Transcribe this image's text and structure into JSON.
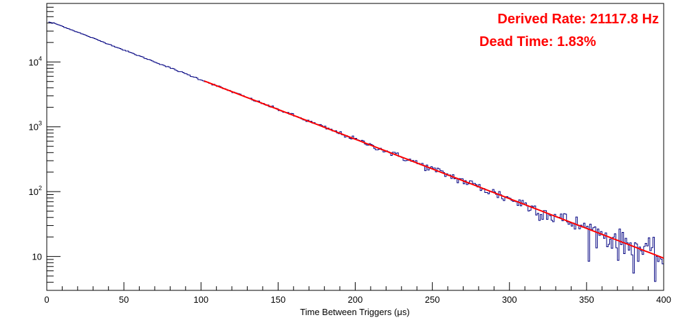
{
  "chart_data": {
    "type": "line",
    "title": "",
    "xlabel": "Time Between Triggers (μs)",
    "ylabel": "",
    "xlim": [
      0,
      400
    ],
    "ylim": [
      3,
      80000
    ],
    "yscale": "log",
    "grid": false,
    "x_ticks": [
      0,
      50,
      100,
      150,
      200,
      250,
      300,
      350,
      400
    ],
    "x_tick_labels": [
      "0",
      "50",
      "100",
      "150",
      "200",
      "250",
      "300",
      "350",
      "400"
    ],
    "y_ticks": [
      10,
      100,
      1000,
      10000
    ],
    "y_tick_labels": [
      {
        "base": "10",
        "exp": ""
      },
      {
        "base": "10",
        "exp": "2"
      },
      {
        "base": "10",
        "exp": "3"
      },
      {
        "base": "10",
        "exp": "4"
      }
    ],
    "histogram": {
      "color": "#000080",
      "bin_width": 1,
      "start": 1,
      "amplitude": 44000,
      "rate_per_us": 0.02112,
      "approx_points": [
        [
          2,
          43000
        ],
        [
          50,
          15000
        ],
        [
          100,
          5200
        ],
        [
          150,
          1800
        ],
        [
          200,
          640
        ],
        [
          250,
          230
        ],
        [
          300,
          80
        ],
        [
          350,
          28
        ],
        [
          400,
          10
        ]
      ]
    },
    "fit": {
      "color": "#ff0000",
      "x_range": [
        102,
        400
      ],
      "amplitude": 44000,
      "rate_per_us": 0.02112
    },
    "annotations": [
      {
        "text": "Derived Rate: 21117.8 Hz",
        "color": "#ff0000"
      },
      {
        "text": "Dead Time: 1.83%",
        "color": "#ff0000"
      }
    ]
  }
}
